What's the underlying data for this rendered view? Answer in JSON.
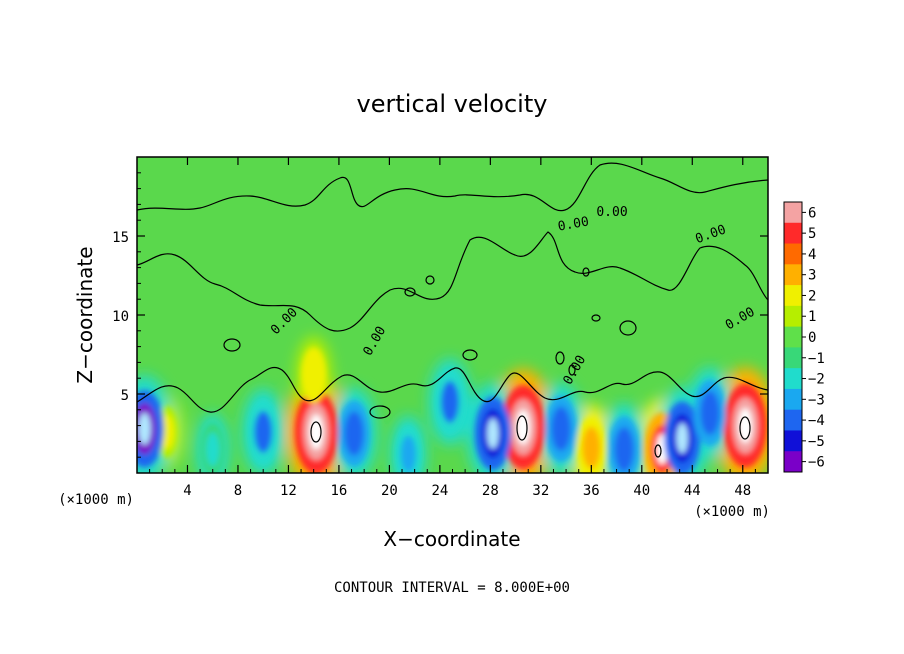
{
  "chart_data": {
    "type": "heatmap",
    "title": "vertical velocity",
    "xlabel": "X−coordinate",
    "ylabel": "Z−coordinate",
    "x_unit_left": "(×1000 m)",
    "x_unit_right": "(×1000 m)",
    "x_ticks": [
      4,
      8,
      12,
      16,
      20,
      24,
      28,
      32,
      36,
      40,
      44,
      48
    ],
    "y_ticks": [
      5,
      10,
      15
    ],
    "xlim": [
      0,
      50
    ],
    "ylim": [
      0,
      20
    ],
    "contour_interval_text": "CONTOUR INTERVAL = 8.000E+00",
    "contour_labels": [
      "0.00",
      "0.00",
      "0.00",
      "0.00",
      "0.00",
      "0.00",
      "0.00"
    ],
    "colorbar": {
      "ticks": [
        "6",
        "5",
        "4",
        "3",
        "2",
        "1",
        "0",
        "−1",
        "−2",
        "−3",
        "−4",
        "−5",
        "−6"
      ],
      "range": [
        -6,
        6
      ],
      "colors": [
        "#f4a3a3",
        "#ff2a2a",
        "#ff6a00",
        "#ffb000",
        "#f0f000",
        "#b6ee00",
        "#5fe04a",
        "#38d878",
        "#20dccc",
        "#1aa8f0",
        "#1e66f0",
        "#1010d8",
        "#7a00c8"
      ]
    },
    "features": [
      {
        "kind": "updraft",
        "x": 14.2,
        "z": 2.6,
        "amp": 6.5
      },
      {
        "kind": "updraft",
        "x": 30.6,
        "z": 2.9,
        "amp": 6.5
      },
      {
        "kind": "updraft",
        "x": 48.2,
        "z": 3.0,
        "amp": 6.5
      },
      {
        "kind": "updraft",
        "x": 41.6,
        "z": 1.5,
        "amp": 5.0
      },
      {
        "kind": "updraft",
        "x": 36.0,
        "z": 1.6,
        "amp": 3.5
      },
      {
        "kind": "updraft",
        "x": 2.4,
        "z": 2.6,
        "amp": 2.0
      },
      {
        "kind": "updraft",
        "x": 14.0,
        "z": 6.2,
        "amp": 2.5
      },
      {
        "kind": "downdraft",
        "x": 0.6,
        "z": 2.8,
        "amp": -5.5
      },
      {
        "kind": "downdraft",
        "x": 10.0,
        "z": 2.6,
        "amp": -3.5
      },
      {
        "kind": "downdraft",
        "x": 17.2,
        "z": 2.5,
        "amp": -4.0
      },
      {
        "kind": "downdraft",
        "x": 24.8,
        "z": 4.5,
        "amp": -3.5
      },
      {
        "kind": "downdraft",
        "x": 28.2,
        "z": 2.5,
        "amp": -5.0
      },
      {
        "kind": "downdraft",
        "x": 33.6,
        "z": 2.8,
        "amp": -4.0
      },
      {
        "kind": "downdraft",
        "x": 38.6,
        "z": 1.5,
        "amp": -4.0
      },
      {
        "kind": "downdraft",
        "x": 43.2,
        "z": 2.2,
        "amp": -5.0
      },
      {
        "kind": "downdraft",
        "x": 45.4,
        "z": 3.8,
        "amp": -4.0
      },
      {
        "kind": "downdraft",
        "x": 21.5,
        "z": 1.2,
        "amp": -2.5
      },
      {
        "kind": "downdraft",
        "x": 6.0,
        "z": 1.5,
        "amp": -2.0
      }
    ]
  }
}
